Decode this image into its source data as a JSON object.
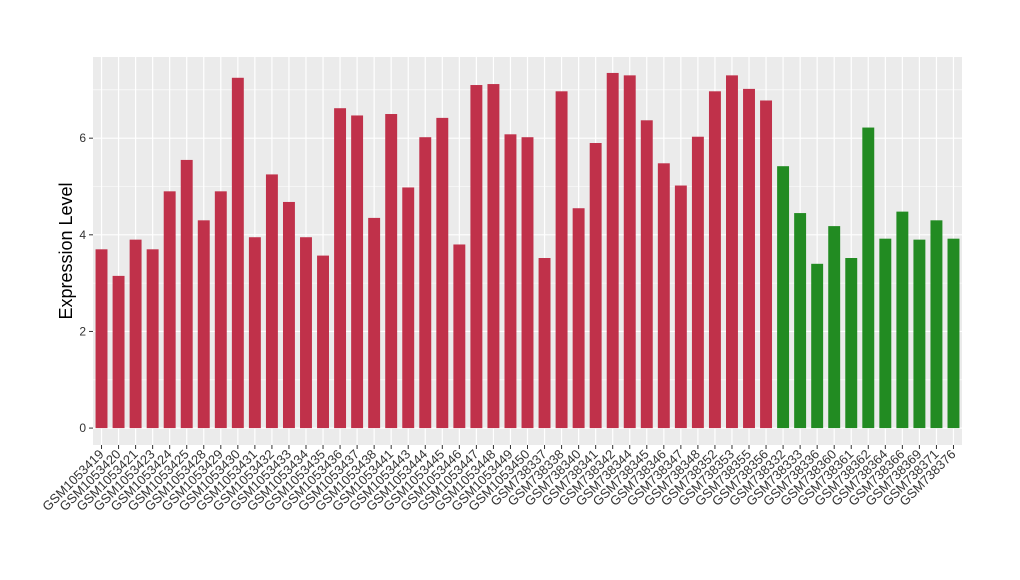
{
  "chart_data": {
    "type": "bar",
    "y_label": "Expression Level",
    "categories": [
      "GSM1053419",
      "GSM1053420",
      "GSM1053421",
      "GSM1053423",
      "GSM1053424",
      "GSM1053425",
      "GSM1053428",
      "GSM1053429",
      "GSM1053430",
      "GSM1053431",
      "GSM1053432",
      "GSM1053433",
      "GSM1053434",
      "GSM1053435",
      "GSM1053436",
      "GSM1053437",
      "GSM1053438",
      "GSM1053441",
      "GSM1053443",
      "GSM1053444",
      "GSM1053445",
      "GSM1053446",
      "GSM1053447",
      "GSM1053448",
      "GSM1053449",
      "GSM1053450",
      "GSM738337",
      "GSM738338",
      "GSM738340",
      "GSM738341",
      "GSM738342",
      "GSM738344",
      "GSM738345",
      "GSM738346",
      "GSM738347",
      "GSM738348",
      "GSM738352",
      "GSM738353",
      "GSM738355",
      "GSM738356",
      "GSM738332",
      "GSM738333",
      "GSM738336",
      "GSM738360",
      "GSM738361",
      "GSM738362",
      "GSM738364",
      "GSM738366",
      "GSM738369",
      "GSM738371",
      "GSM738376"
    ],
    "values": [
      3.7,
      3.15,
      3.9,
      3.7,
      4.9,
      5.55,
      4.3,
      4.9,
      7.25,
      3.95,
      5.25,
      4.68,
      3.95,
      3.57,
      6.62,
      6.47,
      4.35,
      6.5,
      4.98,
      6.02,
      6.42,
      3.8,
      7.1,
      7.12,
      6.08,
      6.02,
      3.52,
      6.97,
      4.55,
      5.9,
      7.35,
      7.3,
      6.37,
      5.48,
      5.02,
      6.03,
      6.97,
      7.3,
      7.02,
      6.78,
      5.42,
      4.45,
      3.4,
      4.18,
      3.52,
      6.22,
      3.92,
      4.48,
      3.9,
      4.3,
      3.92
    ],
    "colors": [
      "#c0314a",
      "#c0314a",
      "#c0314a",
      "#c0314a",
      "#c0314a",
      "#c0314a",
      "#c0314a",
      "#c0314a",
      "#c0314a",
      "#c0314a",
      "#c0314a",
      "#c0314a",
      "#c0314a",
      "#c0314a",
      "#c0314a",
      "#c0314a",
      "#c0314a",
      "#c0314a",
      "#c0314a",
      "#c0314a",
      "#c0314a",
      "#c0314a",
      "#c0314a",
      "#c0314a",
      "#c0314a",
      "#c0314a",
      "#c0314a",
      "#c0314a",
      "#c0314a",
      "#c0314a",
      "#c0314a",
      "#c0314a",
      "#c0314a",
      "#c0314a",
      "#c0314a",
      "#c0314a",
      "#c0314a",
      "#c0314a",
      "#c0314a",
      "#c0314a",
      "#228b22",
      "#228b22",
      "#228b22",
      "#228b22",
      "#228b22",
      "#228b22",
      "#228b22",
      "#228b22",
      "#228b22",
      "#228b22",
      "#228b22"
    ],
    "ylim": [
      -0.35,
      7.68
    ],
    "yticks": [
      0,
      2,
      4,
      6
    ],
    "grid": true
  }
}
